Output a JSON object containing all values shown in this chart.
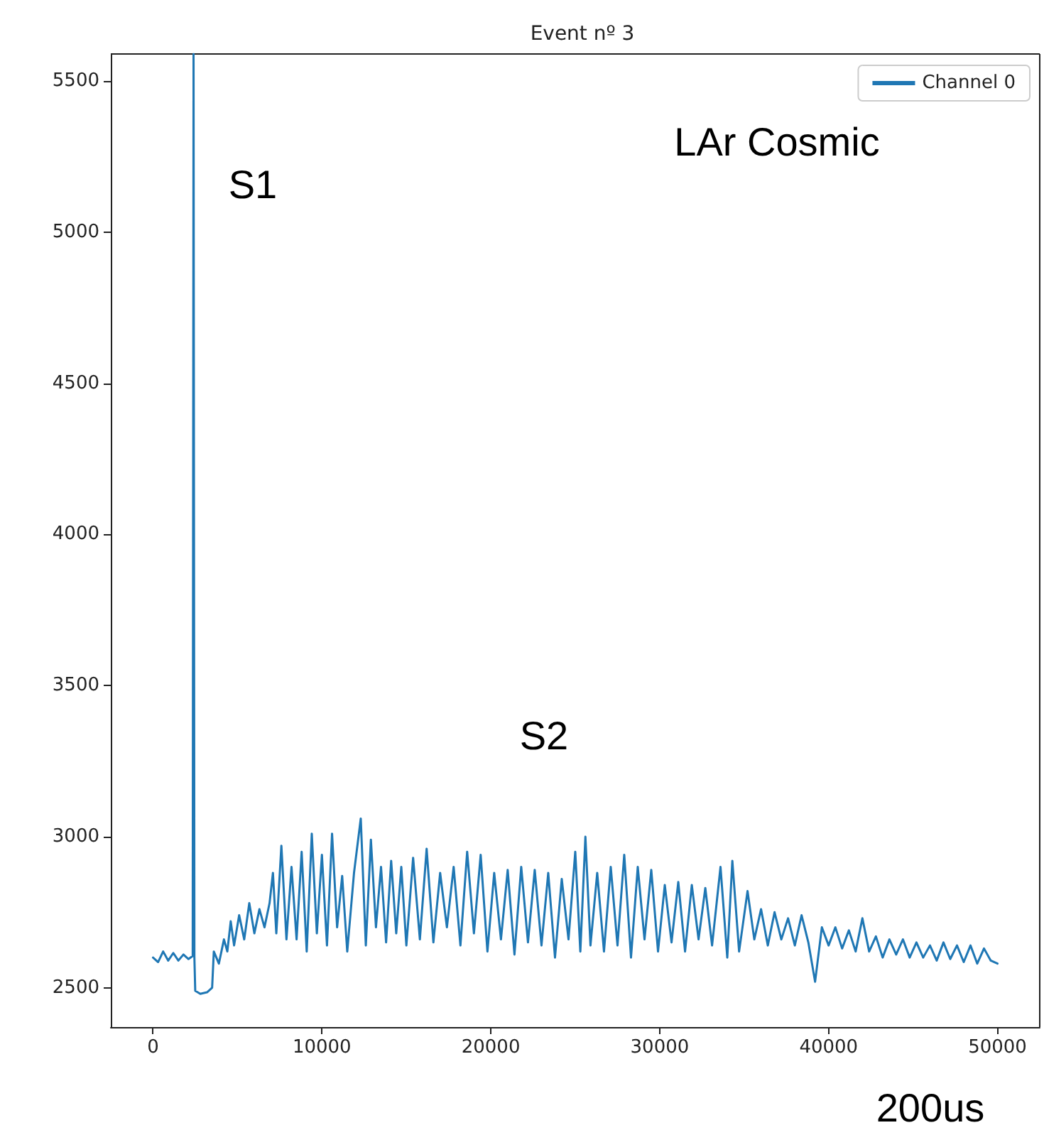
{
  "chart_data": {
    "type": "line",
    "title": "Event nº 3",
    "x": [
      0,
      300,
      600,
      900,
      1200,
      1500,
      1800,
      2100,
      2350,
      2400,
      2450,
      2500,
      2800,
      3200,
      3500,
      3600,
      3900,
      4200,
      4400,
      4600,
      4800,
      5100,
      5400,
      5700,
      6000,
      6300,
      6600,
      6900,
      7100,
      7300,
      7600,
      7900,
      8200,
      8500,
      8800,
      9100,
      9400,
      9700,
      10000,
      10300,
      10600,
      10900,
      11200,
      11500,
      11900,
      12300,
      12600,
      12900,
      13200,
      13500,
      13800,
      14100,
      14400,
      14700,
      15000,
      15400,
      15800,
      16200,
      16600,
      17000,
      17400,
      17800,
      18200,
      18600,
      19000,
      19400,
      19800,
      20200,
      20600,
      21000,
      21400,
      21800,
      22200,
      22600,
      23000,
      23400,
      23800,
      24200,
      24600,
      25000,
      25300,
      25600,
      25900,
      26300,
      26700,
      27100,
      27500,
      27900,
      28300,
      28700,
      29100,
      29500,
      29900,
      30300,
      30700,
      31100,
      31500,
      31900,
      32300,
      32700,
      33100,
      33600,
      34000,
      34300,
      34700,
      35200,
      35600,
      36000,
      36400,
      36800,
      37200,
      37600,
      38000,
      38400,
      38800,
      39200,
      39600,
      40000,
      40400,
      40800,
      41200,
      41600,
      42000,
      42400,
      42800,
      43200,
      43600,
      44000,
      44400,
      44800,
      45200,
      45600,
      46000,
      46400,
      46800,
      47200,
      47600,
      48000,
      48400,
      48800,
      49200,
      49600,
      50000
    ],
    "series": [
      {
        "name": "Channel 0",
        "color": "#1f77b4",
        "values": [
          2600,
          2585,
          2620,
          2590,
          2615,
          2590,
          2610,
          2595,
          2605,
          5590,
          2600,
          2490,
          2480,
          2485,
          2500,
          2620,
          2580,
          2660,
          2620,
          2720,
          2640,
          2740,
          2660,
          2780,
          2680,
          2760,
          2700,
          2780,
          2880,
          2680,
          2970,
          2660,
          2900,
          2660,
          2950,
          2620,
          3010,
          2680,
          2940,
          2640,
          3010,
          2700,
          2870,
          2620,
          2880,
          3060,
          2640,
          2990,
          2700,
          2900,
          2650,
          2920,
          2680,
          2900,
          2640,
          2930,
          2660,
          2960,
          2650,
          2880,
          2700,
          2900,
          2640,
          2950,
          2680,
          2940,
          2620,
          2880,
          2660,
          2890,
          2610,
          2900,
          2650,
          2890,
          2640,
          2880,
          2600,
          2860,
          2660,
          2950,
          2620,
          3000,
          2640,
          2880,
          2620,
          2900,
          2640,
          2940,
          2600,
          2900,
          2660,
          2890,
          2620,
          2840,
          2650,
          2850,
          2620,
          2840,
          2660,
          2830,
          2640,
          2900,
          2600,
          2920,
          2620,
          2820,
          2660,
          2760,
          2640,
          2750,
          2660,
          2730,
          2640,
          2740,
          2650,
          2520,
          2700,
          2640,
          2700,
          2630,
          2690,
          2620,
          2730,
          2620,
          2670,
          2600,
          2660,
          2610,
          2660,
          2600,
          2650,
          2600,
          2640,
          2590,
          2650,
          2595,
          2640,
          2585,
          2640,
          2580,
          2630,
          2590,
          2580
        ]
      }
    ],
    "xlim": [
      -2500,
      52500
    ],
    "xticks": [
      0,
      10000,
      20000,
      30000,
      40000,
      50000
    ],
    "ylim": [
      2370,
      5590
    ],
    "yticks": [
      2500,
      3000,
      3500,
      4000,
      4500,
      5000,
      5500
    ],
    "grid": false,
    "legend": "top right",
    "marker": "none",
    "line_style": "solid",
    "annotations": [
      "S1",
      "S2",
      "LAr Cosmic",
      "200us"
    ]
  }
}
